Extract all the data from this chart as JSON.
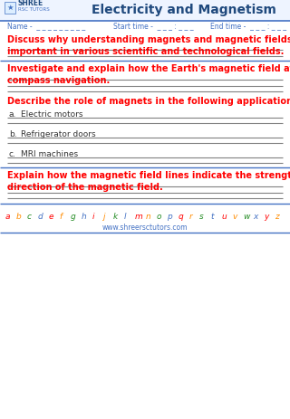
{
  "title": "Electricity and Magnetism",
  "name_label": "Name -  _ _ _ _ _ _ _ _ _",
  "start_label": "Start time -  _ _ _ : _ _ _",
  "end_label": "End time -  _ _ _ : _ _ _",
  "q1_text": "Discuss why understanding magnets and magnetic fields is\nimportant in various scientific and technological fields.",
  "q2_text": "Investigate and explain how the Earth's magnetic field affects\ncompass navigation.",
  "q3_text": "Describe the role of magnets in the following applications:",
  "q3a_label": "a.",
  "q3a_text": "Electric motors",
  "q3b_label": "b.",
  "q3b_text": "Refrigerator doors",
  "q3c_label": "c.",
  "q3c_text": "MRI machines",
  "q4_text": "Explain how the magnetic field lines indicate the strength and\ndirection of the magnetic field.",
  "footer_url": "www.shreersctutors.com",
  "red_color": "#FF0000",
  "blue_color": "#4472C4",
  "dark_blue": "#1F497D",
  "line_color": "#808080",
  "bg_color": "#FFFFFF",
  "alphabet_letters": [
    "a",
    "b",
    "c",
    "d",
    "e",
    "f",
    "g",
    "h",
    "i",
    "j",
    "k",
    "l",
    "m",
    "n",
    "o",
    "p",
    "q",
    "r",
    "s",
    "t",
    "u",
    "v",
    "w",
    "x",
    "y",
    "z"
  ],
  "alphabet_colors": [
    "#FF0000",
    "#FF8C00",
    "#228B22",
    "#4472C4",
    "#FF0000",
    "#FF8C00",
    "#228B22",
    "#4472C4",
    "#FF0000",
    "#FF8C00",
    "#228B22",
    "#4472C4",
    "#FF0000",
    "#FF8C00",
    "#228B22",
    "#4472C4",
    "#FF0000",
    "#FF8C00",
    "#228B22",
    "#4472C4",
    "#FF0000",
    "#FF8C00",
    "#228B22",
    "#4472C4",
    "#FF0000",
    "#FF8C00"
  ]
}
